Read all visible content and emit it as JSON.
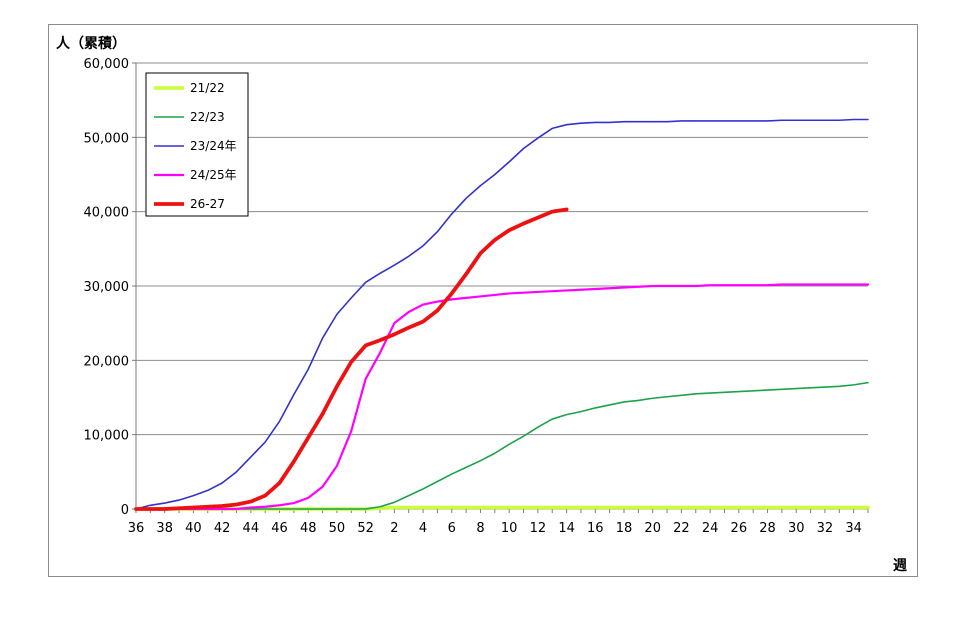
{
  "chart_data": {
    "type": "line",
    "ylabel": "人（累積）",
    "xlabel": "週",
    "ylim": [
      0,
      60000
    ],
    "yticks": [
      0,
      10000,
      20000,
      30000,
      40000,
      50000,
      60000
    ],
    "ytick_labels": [
      "0",
      "10,000",
      "20,000",
      "30,000",
      "40,000",
      "50,000",
      "60,000"
    ],
    "x_weeks": [
      36,
      37,
      38,
      39,
      40,
      41,
      42,
      43,
      44,
      45,
      46,
      47,
      48,
      49,
      50,
      51,
      52,
      1,
      2,
      3,
      4,
      5,
      6,
      7,
      8,
      9,
      10,
      11,
      12,
      13,
      14,
      15,
      16,
      17,
      18,
      19,
      20,
      21,
      22,
      23,
      24,
      25,
      26,
      27,
      28,
      29,
      30,
      31,
      32,
      33,
      34,
      35
    ],
    "xtick_labels": [
      "36",
      "38",
      "40",
      "42",
      "44",
      "46",
      "48",
      "50",
      "52",
      "2",
      "4",
      "6",
      "8",
      "10",
      "12",
      "14",
      "16",
      "18",
      "20",
      "22",
      "24",
      "26",
      "28",
      "30",
      "32",
      "34"
    ],
    "grid": "horizontal",
    "legend_position": "top-left",
    "series": [
      {
        "name": "21/22",
        "color": "#ccff33",
        "values": [
          0,
          0,
          0,
          0,
          0,
          0,
          0,
          0,
          0,
          0,
          0,
          0,
          0,
          0,
          0,
          0,
          0,
          100,
          200,
          200,
          200,
          200,
          200,
          200,
          200,
          200,
          200,
          200,
          200,
          200,
          200,
          200,
          200,
          200,
          200,
          200,
          200,
          200,
          200,
          200,
          200,
          200,
          200,
          200,
          200,
          200,
          200,
          200,
          200,
          200,
          200,
          200
        ]
      },
      {
        "name": "22/23",
        "color": "#1aa34a",
        "values": [
          0,
          0,
          0,
          0,
          0,
          0,
          0,
          0,
          0,
          0,
          0,
          0,
          0,
          0,
          0,
          0,
          0,
          300,
          900,
          1800,
          2700,
          3700,
          4700,
          5600,
          6500,
          7500,
          8700,
          9800,
          11000,
          12100,
          12700,
          13100,
          13600,
          14000,
          14400,
          14600,
          14900,
          15100,
          15300,
          15500,
          15600,
          15700,
          15800,
          15900,
          16000,
          16100,
          16200,
          16300,
          16400,
          16500,
          16700,
          17000
        ]
      },
      {
        "name": "23/24年",
        "color": "#3333cc",
        "values": [
          0,
          500,
          800,
          1200,
          1800,
          2500,
          3500,
          5000,
          7000,
          9000,
          11800,
          15400,
          18800,
          23000,
          26200,
          28400,
          30500,
          31700,
          32800,
          34000,
          35400,
          37300,
          39700,
          41800,
          43500,
          45000,
          46700,
          48500,
          49900,
          51200,
          51700,
          51900,
          52000,
          52000,
          52100,
          52100,
          52100,
          52100,
          52200,
          52200,
          52200,
          52200,
          52200,
          52200,
          52200,
          52300,
          52300,
          52300,
          52300,
          52300,
          52400,
          52400
        ]
      },
      {
        "name": "24/25年",
        "color": "#ff00ff",
        "values": [
          0,
          0,
          0,
          0,
          0,
          0,
          0,
          0,
          200,
          300,
          500,
          800,
          1500,
          3000,
          5800,
          10500,
          17500,
          21000,
          25000,
          26500,
          27500,
          27900,
          28200,
          28400,
          28600,
          28800,
          29000,
          29100,
          29200,
          29300,
          29400,
          29500,
          29600,
          29700,
          29800,
          29900,
          30000,
          30000,
          30000,
          30000,
          30100,
          30100,
          30100,
          30100,
          30100,
          30200,
          30200,
          30200,
          30200,
          30200,
          30200,
          30200
        ]
      },
      {
        "name": "26-27",
        "color": "#ee1111",
        "values": [
          0,
          0,
          0,
          100,
          200,
          300,
          400,
          600,
          1000,
          1800,
          3500,
          6400,
          9600,
          12800,
          16500,
          19800,
          22000,
          22700,
          23500,
          24400,
          25200,
          26700,
          29000,
          31600,
          34400,
          36200,
          37500,
          38400,
          39200,
          40000,
          40300
        ]
      }
    ]
  }
}
